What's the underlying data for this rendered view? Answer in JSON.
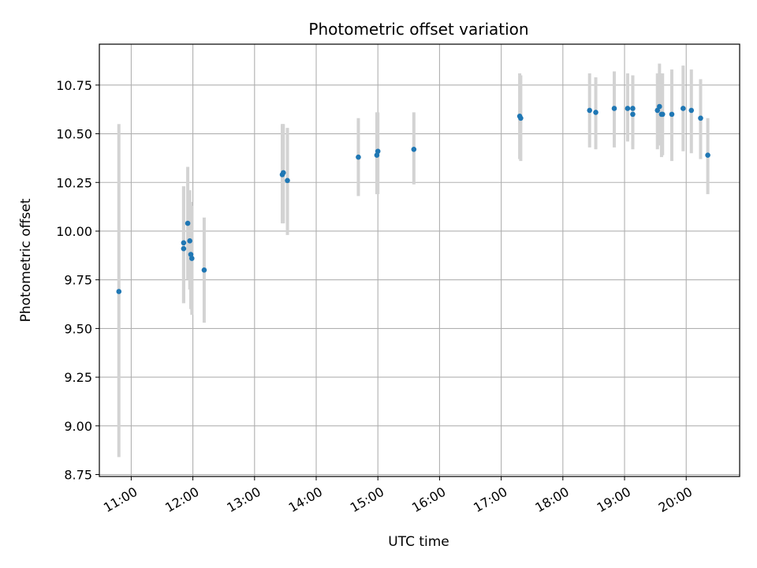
{
  "chart_data": {
    "type": "scatter",
    "title": "Photometric offset variation",
    "xlabel": "UTC time",
    "ylabel": "Photometric offset",
    "grid": true,
    "legend": "none",
    "xlim": [
      "10:29",
      "20:52"
    ],
    "ylim": [
      8.74,
      10.96
    ],
    "x_ticks": [
      "11:00",
      "12:00",
      "13:00",
      "14:00",
      "15:00",
      "16:00",
      "17:00",
      "18:00",
      "19:00",
      "20:00"
    ],
    "y_ticks": [
      8.75,
      9.0,
      9.25,
      9.5,
      9.75,
      10.0,
      10.25,
      10.5,
      10.75
    ],
    "y_tick_labels": [
      "8.75",
      "9.00",
      "9.25",
      "9.50",
      "9.75",
      "10.00",
      "10.25",
      "10.50",
      "10.75"
    ],
    "colors": {
      "points": "#1f77b4",
      "errorbars": "#d3d3d3",
      "grid": "#b0b0b0"
    },
    "points": [
      {
        "x": "10:48",
        "y": 9.69,
        "ylow": 8.84,
        "yhigh": 10.55
      },
      {
        "x": "11:51",
        "y": 9.94,
        "ylow": 9.63,
        "yhigh": 10.23
      },
      {
        "x": "11:51",
        "y": 9.91,
        "ylow": 9.63,
        "yhigh": 10.23
      },
      {
        "x": "11:55",
        "y": 10.04,
        "ylow": 9.75,
        "yhigh": 10.33
      },
      {
        "x": "11:57",
        "y": 9.95,
        "ylow": 9.7,
        "yhigh": 10.21
      },
      {
        "x": "11:58",
        "y": 9.88,
        "ylow": 9.6,
        "yhigh": 10.15
      },
      {
        "x": "11:59",
        "y": 9.86,
        "ylow": 9.57,
        "yhigh": 10.13
      },
      {
        "x": "12:11",
        "y": 9.8,
        "ylow": 9.53,
        "yhigh": 10.07
      },
      {
        "x": "13:27",
        "y": 10.29,
        "ylow": 10.04,
        "yhigh": 10.55
      },
      {
        "x": "13:28",
        "y": 10.3,
        "ylow": 10.04,
        "yhigh": 10.55
      },
      {
        "x": "13:32",
        "y": 10.26,
        "ylow": 9.98,
        "yhigh": 10.53
      },
      {
        "x": "14:41",
        "y": 10.38,
        "ylow": 10.18,
        "yhigh": 10.58
      },
      {
        "x": "14:59",
        "y": 10.39,
        "ylow": 10.19,
        "yhigh": 10.61
      },
      {
        "x": "15:00",
        "y": 10.41,
        "ylow": 10.19,
        "yhigh": 10.61
      },
      {
        "x": "15:35",
        "y": 10.42,
        "ylow": 10.24,
        "yhigh": 10.61
      },
      {
        "x": "17:18",
        "y": 10.59,
        "ylow": 10.37,
        "yhigh": 10.81
      },
      {
        "x": "17:19",
        "y": 10.58,
        "ylow": 10.36,
        "yhigh": 10.8
      },
      {
        "x": "18:26",
        "y": 10.62,
        "ylow": 10.43,
        "yhigh": 10.81
      },
      {
        "x": "18:32",
        "y": 10.61,
        "ylow": 10.42,
        "yhigh": 10.79
      },
      {
        "x": "18:50",
        "y": 10.63,
        "ylow": 10.43,
        "yhigh": 10.82
      },
      {
        "x": "19:03",
        "y": 10.63,
        "ylow": 10.46,
        "yhigh": 10.81
      },
      {
        "x": "19:08",
        "y": 10.63,
        "ylow": 10.44,
        "yhigh": 10.8
      },
      {
        "x": "19:08",
        "y": 10.6,
        "ylow": 10.42,
        "yhigh": 10.8
      },
      {
        "x": "19:32",
        "y": 10.62,
        "ylow": 10.42,
        "yhigh": 10.81
      },
      {
        "x": "19:34",
        "y": 10.64,
        "ylow": 10.44,
        "yhigh": 10.86
      },
      {
        "x": "19:36",
        "y": 10.6,
        "ylow": 10.38,
        "yhigh": 10.81
      },
      {
        "x": "19:37",
        "y": 10.6,
        "ylow": 10.39,
        "yhigh": 10.81
      },
      {
        "x": "19:46",
        "y": 10.6,
        "ylow": 10.36,
        "yhigh": 10.83
      },
      {
        "x": "19:57",
        "y": 10.63,
        "ylow": 10.41,
        "yhigh": 10.85
      },
      {
        "x": "20:05",
        "y": 10.62,
        "ylow": 10.4,
        "yhigh": 10.83
      },
      {
        "x": "20:14",
        "y": 10.58,
        "ylow": 10.37,
        "yhigh": 10.78
      },
      {
        "x": "20:21",
        "y": 10.39,
        "ylow": 10.19,
        "yhigh": 10.58
      }
    ]
  }
}
